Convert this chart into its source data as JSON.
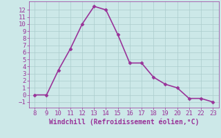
{
  "x": [
    8,
    9,
    10,
    11,
    12,
    13,
    14,
    15,
    16,
    17,
    18,
    19,
    20,
    21,
    22,
    23
  ],
  "y": [
    0.0,
    0.0,
    3.5,
    6.5,
    10.0,
    12.5,
    12.0,
    8.5,
    4.5,
    4.5,
    2.5,
    1.5,
    1.0,
    -0.5,
    -0.5,
    -1.0
  ],
  "line_color": "#993399",
  "marker": "D",
  "marker_size": 2.5,
  "xlabel": "Windchill (Refroidissement éolien,°C)",
  "xlabel_fontsize": 7,
  "xlim": [
    7.5,
    23.5
  ],
  "ylim": [
    -1.8,
    13.2
  ],
  "xticks": [
    8,
    9,
    10,
    11,
    12,
    13,
    14,
    15,
    16,
    17,
    18,
    19,
    20,
    21,
    22,
    23
  ],
  "yticks": [
    -1,
    0,
    1,
    2,
    3,
    4,
    5,
    6,
    7,
    8,
    9,
    10,
    11,
    12
  ],
  "background_color": "#cce8e8",
  "grid_color": "#aacccc",
  "tick_fontsize": 6.5,
  "linewidth": 1.2
}
